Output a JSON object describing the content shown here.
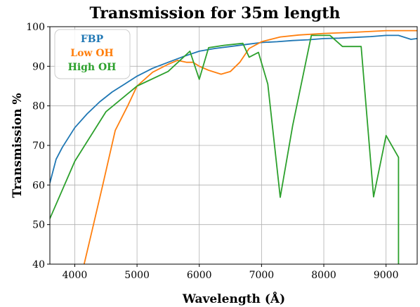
{
  "chart_data": {
    "type": "line",
    "title": "Transmission for 35m length",
    "xlabel": "Wavelength (Å)",
    "ylabel": "Transmission %",
    "xlim": [
      3600,
      9500
    ],
    "ylim": [
      40,
      100
    ],
    "xticks": [
      4000,
      5000,
      6000,
      7000,
      8000,
      9000
    ],
    "yticks": [
      40,
      50,
      60,
      70,
      80,
      90,
      100
    ],
    "grid": true,
    "legend_position": "top-left",
    "series": [
      {
        "name": "FBP",
        "color": "#1f77b4",
        "x": [
          3600,
          3700,
          3800,
          4000,
          4200,
          4400,
          4600,
          4800,
          5000,
          5250,
          5500,
          5750,
          6000,
          6250,
          6500,
          6750,
          7000,
          7250,
          7500,
          7750,
          8000,
          8250,
          8500,
          8750,
          9000,
          9200,
          9400,
          9500
        ],
        "y": [
          60.5,
          66.5,
          69.5,
          74.5,
          78,
          81,
          83.5,
          85.5,
          87.5,
          89.5,
          91,
          92.5,
          93.8,
          94.5,
          95,
          95.5,
          96,
          96.2,
          96.5,
          96.7,
          97,
          97.1,
          97.3,
          97.5,
          97.8,
          97.8,
          96.8,
          97
        ]
      },
      {
        "name": "Low OH",
        "color": "#ff7f0e",
        "x": [
          4150,
          4300,
          4450,
          4650,
          4850,
          5000,
          5250,
          5500,
          5650,
          5800,
          5900,
          6000,
          6150,
          6350,
          6500,
          6650,
          6800,
          7000,
          7300,
          7600,
          8000,
          8500,
          9000,
          9500
        ],
        "y": [
          40,
          50,
          60,
          73.8,
          80,
          85,
          88.5,
          90.5,
          91.5,
          91,
          91,
          90,
          89,
          88,
          88.7,
          91,
          94.5,
          96.2,
          97.4,
          97.9,
          98.3,
          98.6,
          99,
          99
        ]
      },
      {
        "name": "High OH",
        "color": "#2ca02c",
        "x": [
          3600,
          4000,
          4500,
          5000,
          5500,
          5850,
          6000,
          6150,
          6400,
          6700,
          6800,
          6950,
          7100,
          7300,
          7500,
          7800,
          8100,
          8300,
          8600,
          8800,
          9000,
          9200,
          9200
        ],
        "y": [
          51.5,
          66,
          78.5,
          85,
          88.7,
          93.8,
          86.7,
          94.7,
          95.3,
          95.8,
          92.3,
          93.5,
          85.5,
          56.9,
          75,
          97.8,
          97.8,
          95,
          95,
          57,
          72.5,
          67,
          40
        ]
      }
    ]
  }
}
